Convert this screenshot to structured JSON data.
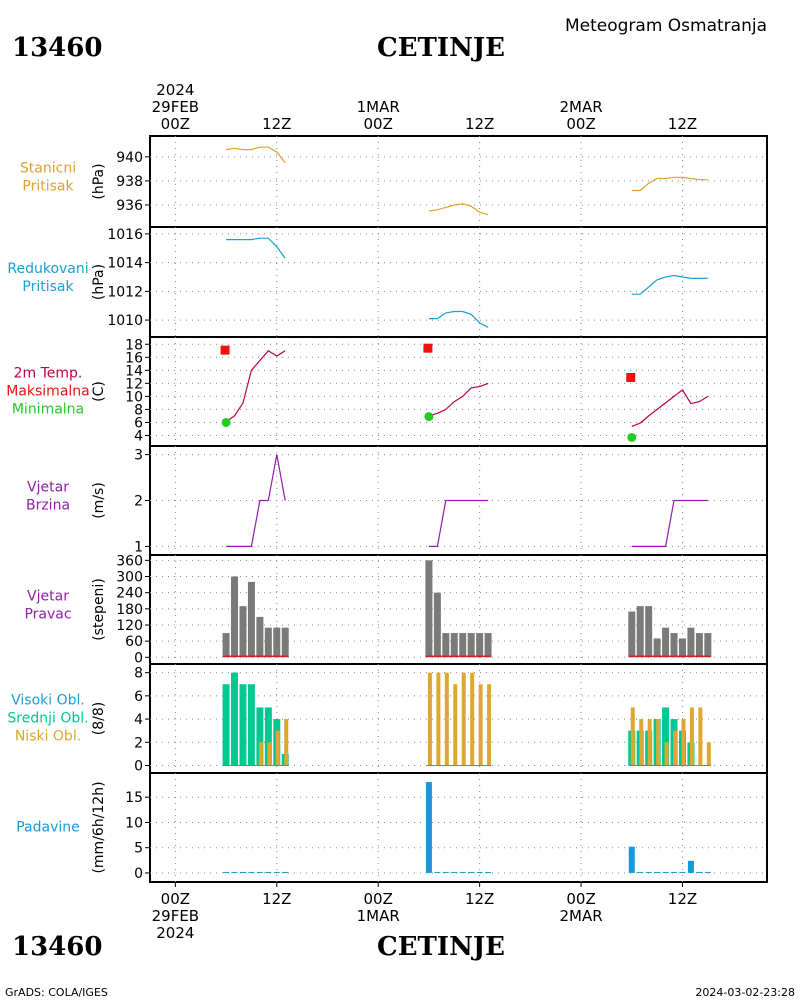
{
  "header": {
    "station_id": "13460",
    "station_name": "CETINJE",
    "product_title": "Meteogram Osmatranja"
  },
  "footer": {
    "station_id": "13460",
    "station_name": "CETINJE",
    "credit": "GrADS: COLA/IGES",
    "timestamp": "2024-03-02-23:28"
  },
  "time_axis": {
    "top_year": "2024",
    "bottom_year": "2024",
    "days": [
      "29FEB",
      "1MAR",
      "2MAR"
    ],
    "tick_labels": [
      "00Z",
      "12Z",
      "00Z",
      "12Z",
      "00Z",
      "12Z"
    ],
    "range_hours": [
      -3,
      70
    ]
  },
  "colors": {
    "orange": "#e0a030",
    "blue": "#1aa0d8",
    "crimson": "#c00040",
    "red": "#ee1111",
    "green": "#22cc22",
    "purple": "#9020a8",
    "gray": "#7a7a7a",
    "teal": "#00c890",
    "cloud_orange": "#dca830",
    "precip_blue": "#1898dc",
    "panel_red": "#cc2222"
  },
  "chart_data": [
    {
      "type": "line",
      "labels": [
        "Stanicni",
        "Pritisak"
      ],
      "ylabel": "(hPa)",
      "ylim": [
        934.5,
        941.4
      ],
      "yticks": [
        936,
        938,
        940
      ],
      "series": [
        {
          "x": [
            6,
            7,
            8,
            9,
            10,
            11,
            12,
            13
          ],
          "y": [
            940.6,
            940.7,
            940.6,
            940.6,
            940.8,
            940.8,
            940.4,
            939.5
          ]
        },
        {
          "x": [
            30,
            31,
            32,
            33,
            34,
            35,
            36,
            37
          ],
          "y": [
            935.5,
            935.6,
            935.8,
            936.0,
            936.1,
            935.9,
            935.4,
            935.2
          ]
        },
        {
          "x": [
            54,
            55,
            56,
            57,
            58,
            59,
            60,
            61,
            62,
            63
          ],
          "y": [
            937.2,
            937.2,
            937.8,
            938.2,
            938.2,
            938.3,
            938.3,
            938.2,
            938.1,
            938.1
          ]
        }
      ]
    },
    {
      "type": "line",
      "labels": [
        "Redukovani",
        "Pritisak"
      ],
      "ylabel": "(hPa)",
      "ylim": [
        1009.1,
        1016.2
      ],
      "yticks": [
        1010,
        1012,
        1014,
        1016
      ],
      "series": [
        {
          "x": [
            6,
            7,
            8,
            9,
            10,
            11,
            12,
            13
          ],
          "y": [
            1015.6,
            1015.6,
            1015.6,
            1015.6,
            1015.7,
            1015.7,
            1015.1,
            1014.3
          ]
        },
        {
          "x": [
            30,
            31,
            32,
            33,
            34,
            35,
            36,
            37
          ],
          "y": [
            1010.1,
            1010.1,
            1010.5,
            1010.6,
            1010.6,
            1010.4,
            1009.8,
            1009.5
          ]
        },
        {
          "x": [
            54,
            55,
            56,
            57,
            58,
            59,
            60,
            61,
            62,
            63
          ],
          "y": [
            1011.8,
            1011.8,
            1012.3,
            1012.8,
            1013.0,
            1013.1,
            1013.0,
            1012.9,
            1012.9,
            1012.9
          ]
        }
      ]
    },
    {
      "type": "line",
      "labels": [
        "2m Temp.",
        "Maksimalna",
        "Minimalna"
      ],
      "ylabel": "(C)",
      "ylim": [
        3,
        18.5
      ],
      "yticks": [
        4,
        6,
        8,
        10,
        12,
        14,
        16,
        18
      ],
      "series": [
        {
          "name": "2m Temp.",
          "x": [
            6,
            7,
            8,
            9,
            10,
            11,
            12,
            13
          ],
          "y": [
            6.1,
            7,
            9,
            14,
            15.5,
            17,
            16.2,
            17
          ]
        },
        {
          "name": "2m Temp.",
          "x": [
            30,
            31,
            32,
            33,
            34,
            35,
            36,
            37
          ],
          "y": [
            7,
            7.4,
            8,
            9.2,
            10,
            11.3,
            11.5,
            12
          ]
        },
        {
          "name": "2m Temp.",
          "x": [
            54,
            55,
            56,
            57,
            58,
            59,
            60,
            61,
            62,
            63
          ],
          "y": [
            5.4,
            5.9,
            7,
            8,
            9,
            10,
            11,
            8.9,
            9.2,
            10
          ]
        }
      ],
      "max_points": {
        "x": [
          6,
          30,
          54
        ],
        "y": [
          17.1,
          17.4,
          12.9
        ]
      },
      "min_points": {
        "x": [
          6,
          30,
          54
        ],
        "y": [
          6.0,
          6.9,
          3.7
        ]
      }
    },
    {
      "type": "line",
      "labels": [
        "Vjetar",
        "Brzina"
      ],
      "ylabel": "(m/s)",
      "ylim": [
        0.9,
        3.1
      ],
      "yticks": [
        1,
        2,
        3
      ],
      "series": [
        {
          "x": [
            6,
            7,
            8,
            9,
            10,
            11,
            12,
            13
          ],
          "y": [
            1,
            1,
            1,
            1,
            2,
            2,
            3,
            2
          ]
        },
        {
          "x": [
            30,
            31,
            32,
            33,
            34,
            35,
            36,
            37
          ],
          "y": [
            1,
            1,
            2,
            2,
            2,
            2,
            2,
            2
          ]
        },
        {
          "x": [
            54,
            55,
            56,
            57,
            58,
            59,
            60,
            61,
            62,
            63
          ],
          "y": [
            1,
            1,
            1,
            1,
            1,
            2,
            2,
            2,
            2,
            2
          ]
        }
      ]
    },
    {
      "type": "bar",
      "labels": [
        "Vjetar",
        "Pravac"
      ],
      "ylabel": "(stepeni)",
      "ylim": [
        -10,
        365
      ],
      "yticks": [
        0,
        60,
        120,
        180,
        240,
        300,
        360
      ],
      "x": [
        6,
        7,
        8,
        9,
        10,
        11,
        12,
        13,
        30,
        31,
        32,
        33,
        34,
        35,
        36,
        37,
        54,
        55,
        56,
        57,
        58,
        59,
        60,
        61,
        62,
        63
      ],
      "values": [
        90,
        300,
        190,
        280,
        150,
        110,
        110,
        110,
        360,
        240,
        90,
        90,
        90,
        90,
        90,
        90,
        170,
        190,
        190,
        70,
        110,
        90,
        70,
        110,
        90,
        90
      ]
    },
    {
      "type": "bar",
      "labels": [
        "Visoki Obl.",
        "Srednji Obl.",
        "Niski Obl."
      ],
      "ylabel": "(8/8)",
      "ylim": [
        -0.3,
        8.4
      ],
      "yticks": [
        0,
        2,
        4,
        6,
        8
      ],
      "x": [
        6,
        7,
        8,
        9,
        10,
        11,
        12,
        13,
        30,
        31,
        32,
        33,
        34,
        35,
        36,
        37,
        54,
        55,
        56,
        57,
        58,
        59,
        60,
        61,
        62,
        63
      ],
      "series": [
        {
          "name": "Srednji Obl.",
          "values": [
            7,
            8,
            7,
            7,
            5,
            5,
            4,
            1,
            0,
            0,
            0,
            0,
            0,
            0,
            0,
            0,
            3,
            3,
            3,
            4,
            5,
            4,
            3,
            2,
            0,
            0
          ]
        },
        {
          "name": "Niski Obl.",
          "values": [
            0,
            0,
            0,
            0,
            2,
            2,
            3,
            4,
            8,
            8,
            8,
            7,
            8,
            8,
            7,
            7,
            5,
            4,
            4,
            4,
            2,
            3,
            4,
            5,
            5,
            2
          ]
        }
      ]
    },
    {
      "type": "bar",
      "labels": [
        "Padavine"
      ],
      "ylabel": "(mm/6h/12h)",
      "ylim": [
        -1,
        19
      ],
      "yticks": [
        0,
        5,
        10,
        15
      ],
      "x": [
        6,
        7,
        8,
        9,
        10,
        11,
        12,
        13,
        30,
        31,
        32,
        33,
        34,
        35,
        36,
        37,
        54,
        55,
        56,
        57,
        58,
        59,
        60,
        61,
        62,
        63
      ],
      "values": [
        0.2,
        0.2,
        0.2,
        0.2,
        0.2,
        0.2,
        0.2,
        0.2,
        18,
        0.2,
        0.2,
        0.2,
        0.2,
        0.2,
        0.2,
        0.2,
        5.2,
        0.2,
        0.2,
        0.2,
        0.2,
        0.2,
        0.2,
        2.4,
        0.2,
        0.2
      ]
    }
  ]
}
